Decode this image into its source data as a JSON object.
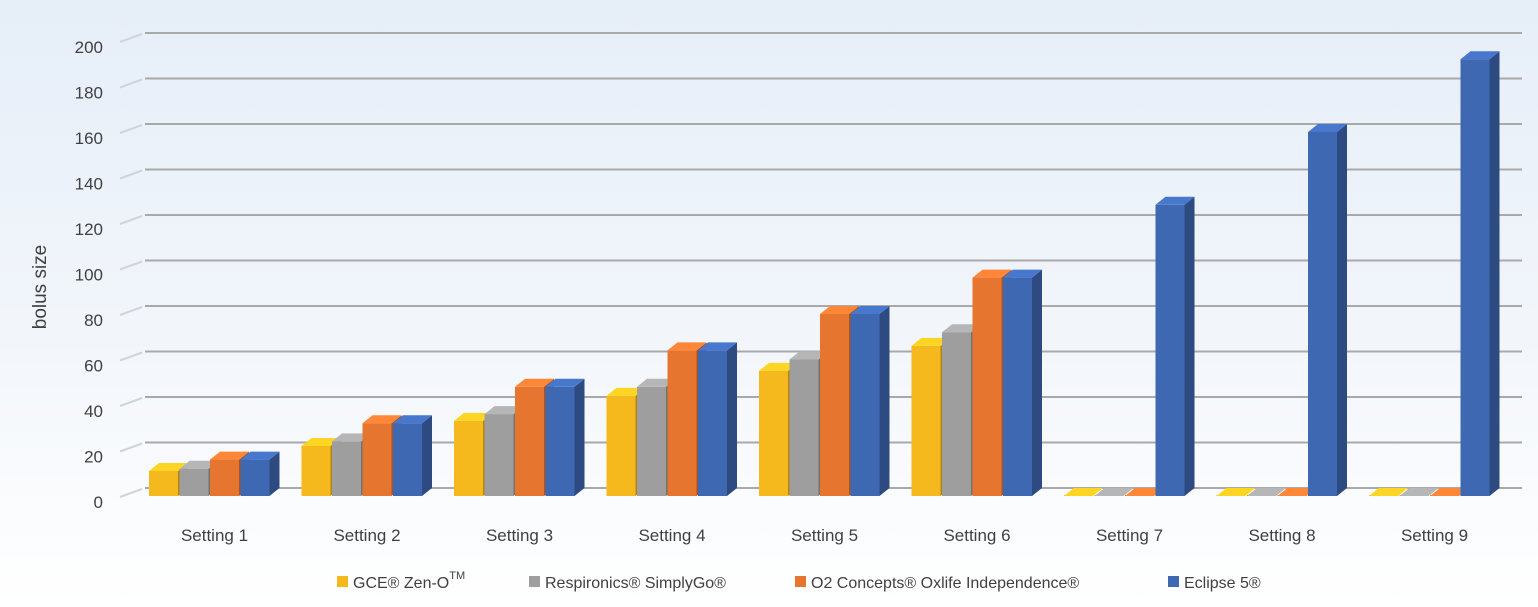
{
  "chart_data": {
    "type": "bar",
    "ylabel": "bolus size",
    "ylim": [
      0,
      200
    ],
    "yticks": [
      0,
      20,
      40,
      60,
      80,
      100,
      120,
      140,
      160,
      180,
      200
    ],
    "categories": [
      "Setting 1",
      "Setting 2",
      "Setting 3",
      "Setting 4",
      "Setting 5",
      "Setting 6",
      "Setting 7",
      "Setting 8",
      "Setting 9"
    ],
    "series": [
      {
        "name": "GCE® Zen-O",
        "name_sup": "TM",
        "color": "#f5b91e",
        "values": [
          11,
          22,
          33,
          44,
          55,
          66,
          0,
          0,
          0
        ]
      },
      {
        "name": "Respironics® SimplyGo®",
        "color": "#9e9e9e",
        "values": [
          12,
          24,
          36,
          48,
          60,
          72,
          0,
          0,
          0
        ]
      },
      {
        "name": "O2 Concepts® Oxlife Independence®",
        "color": "#e67530",
        "values": [
          16,
          32,
          48,
          64,
          80,
          96,
          0,
          0,
          0
        ]
      },
      {
        "name": "Eclipse 5®",
        "color": "#3f68b3",
        "values": [
          16,
          32,
          48,
          64,
          80,
          96,
          128,
          160,
          192
        ]
      }
    ],
    "grid": true,
    "legend_position": "bottom"
  }
}
